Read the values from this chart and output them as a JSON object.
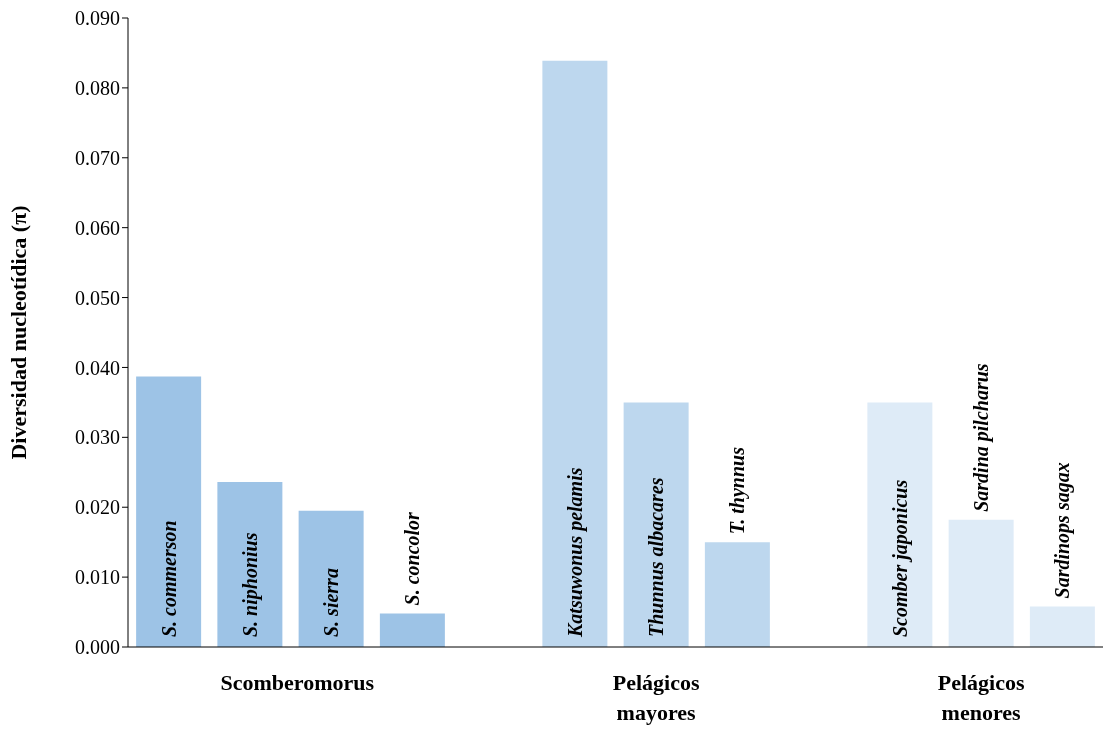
{
  "chart_data": {
    "type": "bar",
    "ylabel": "Diversidad nucleotídica (π)",
    "categories": [
      "S. commerson",
      "S. niphonius",
      "S. sierra",
      "S. concolor",
      null,
      "Katsuwonus pelamis",
      "Thunnus albacares",
      "T. thynnus",
      null,
      "Scomber japonicus",
      "Sardina pilcharus",
      "Sardinops sagax"
    ],
    "values": [
      0.0387,
      0.0236,
      0.0195,
      0.0048,
      null,
      0.0839,
      0.035,
      0.015,
      null,
      0.035,
      0.0182,
      0.0058
    ],
    "colors": [
      "#9dc3e6",
      "#9dc3e6",
      "#9dc3e6",
      "#9dc3e6",
      null,
      "#bdd7ee",
      "#bdd7ee",
      "#bdd7ee",
      null,
      "#deebf7",
      "#deebf7",
      "#deebf7"
    ],
    "ylim": [
      0,
      0.09
    ],
    "yticks": [
      {
        "value": 0,
        "label": "0.000"
      },
      {
        "value": 0.01,
        "label": "0.010"
      },
      {
        "value": 0.02,
        "label": "0.020"
      },
      {
        "value": 0.03,
        "label": "0.030"
      },
      {
        "value": 0.04,
        "label": "0.040"
      },
      {
        "value": 0.05,
        "label": "0.050"
      },
      {
        "value": 0.06,
        "label": "0.060"
      },
      {
        "value": 0.07,
        "label": "0.070"
      },
      {
        "value": 0.08,
        "label": "0.080"
      },
      {
        "value": 0.09,
        "label": "0.090"
      }
    ],
    "annotations": [
      "Scomberomorus",
      "Pelágicos mayores",
      "Pelágicos menores"
    ],
    "grid": false,
    "legend": false
  }
}
